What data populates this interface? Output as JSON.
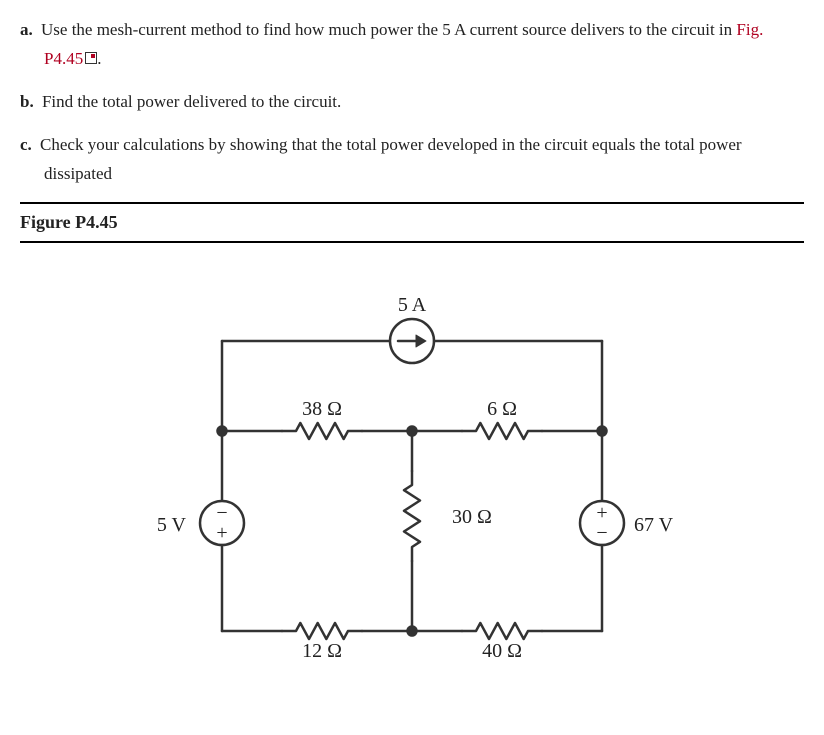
{
  "questions": {
    "a": {
      "label": "a.",
      "pre": "Use the mesh-current method to find how much power the 5 A current source delivers to the circuit in ",
      "figref": "Fig. P4.45",
      "post": "."
    },
    "b": {
      "label": "b.",
      "text": "Find the total power delivered to the circuit."
    },
    "c": {
      "label": "c.",
      "text": "Check your calculations by showing that the total power developed in the circuit equals the total power dissipated"
    }
  },
  "figure": {
    "title": "Figure P4.45",
    "stroke": "#333333",
    "stroke_width": 2.5,
    "bg": "#ffffff",
    "font_color": "#222222",
    "label_fontsize": 20,
    "sources": {
      "I_top": "5 A",
      "V_left": "5 V",
      "V_right": "67 V"
    },
    "resistors": {
      "R1": "38 Ω",
      "R2": "6 Ω",
      "R3": "30 Ω",
      "R4": "12 Ω",
      "R5": "40 Ω"
    },
    "polarity": {
      "left": {
        "top": "−",
        "bottom": "+"
      },
      "right": {
        "top": "+",
        "bottom": "−"
      }
    }
  }
}
